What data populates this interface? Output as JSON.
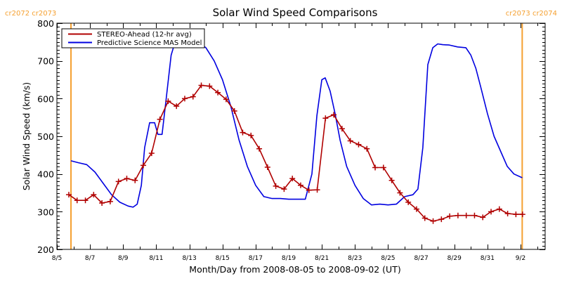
{
  "chart_data": {
    "type": "line",
    "title": "Solar Wind Speed Comparisons",
    "xlabel": "Month/Day from 2008-08-05 to 2008-09-02 (UT)",
    "ylabel": "Solar Wind Speed (km/s)",
    "ylim": [
      200,
      800
    ],
    "xlim_days_from_start": [
      0,
      29.5
    ],
    "yticks": [
      200,
      300,
      400,
      500,
      600,
      700,
      800
    ],
    "xtick_labels": [
      "8/5",
      "8/7",
      "8/9",
      "8/11",
      "8/13",
      "8/15",
      "8/17",
      "8/19",
      "8/21",
      "8/23",
      "8/25",
      "8/27",
      "8/29",
      "8/31",
      "9/2"
    ],
    "xtick_days": [
      0,
      2,
      4,
      6,
      8,
      10,
      12,
      14,
      16,
      18,
      20,
      22,
      24,
      26,
      28
    ],
    "legend_position": "top-left",
    "carrington_markers": [
      {
        "day": 0.85,
        "label": "cr2072 cr2073",
        "align": "left"
      },
      {
        "day": 28.1,
        "label": "cr2073 cr2074",
        "align": "right"
      }
    ],
    "colors": {
      "stereo": "#b00000",
      "mas": "#0000e0",
      "carrington": "#f5a030"
    },
    "series": [
      {
        "name": "STEREO-Ahead (12-hr avg)",
        "color": "#b00000",
        "marker": "plus",
        "x": [
          0.72,
          1.22,
          1.72,
          2.22,
          2.72,
          3.22,
          3.72,
          4.22,
          4.72,
          5.22,
          5.72,
          6.22,
          6.72,
          7.22,
          7.72,
          8.22,
          8.72,
          9.22,
          9.72,
          10.22,
          10.72,
          11.22,
          11.72,
          12.22,
          12.72,
          13.22,
          13.72,
          14.22,
          14.72,
          15.22,
          15.72,
          16.22,
          16.72,
          17.22,
          17.72,
          18.22,
          18.72,
          19.22,
          19.72,
          20.22,
          20.72,
          21.22,
          21.72,
          22.22,
          22.72,
          23.22,
          23.72,
          24.22,
          24.72,
          25.22,
          25.72,
          26.22,
          26.72,
          27.22,
          27.72,
          28.12
        ],
        "values": [
          345,
          330,
          330,
          345,
          323,
          327,
          380,
          388,
          383,
          423,
          455,
          545,
          593,
          580,
          600,
          605,
          635,
          633,
          616,
          598,
          567,
          510,
          502,
          467,
          418,
          368,
          360,
          388,
          370,
          357,
          358,
          548,
          557,
          520,
          488,
          478,
          467,
          417,
          417,
          383,
          350,
          325,
          307,
          283,
          275,
          280,
          288,
          290,
          290,
          290,
          285,
          300,
          307,
          295,
          293,
          293
        ]
      },
      {
        "name": "Predictive Science MAS Model",
        "color": "#0000e0",
        "marker": "none",
        "x": [
          0.85,
          1.3,
          1.8,
          2.3,
          2.8,
          3.3,
          3.8,
          4.3,
          4.6,
          4.85,
          5.1,
          5.3,
          5.6,
          5.9,
          6.1,
          6.35,
          6.6,
          6.9,
          7.1,
          7.4,
          7.7,
          8.0,
          8.5,
          9.0,
          9.5,
          10.0,
          10.5,
          11.0,
          11.5,
          12.0,
          12.5,
          13.0,
          13.5,
          14.0,
          14.5,
          15.0,
          15.4,
          15.7,
          16.0,
          16.2,
          16.5,
          16.8,
          17.1,
          17.5,
          18.0,
          18.5,
          19.0,
          19.5,
          20.0,
          20.5,
          21.0,
          21.5,
          21.8,
          22.1,
          22.4,
          22.7,
          23.0,
          23.3,
          23.7,
          24.2,
          24.7,
          25.0,
          25.3,
          25.6,
          26.0,
          26.4,
          26.8,
          27.2,
          27.6,
          28.1
        ],
        "values": [
          435,
          430,
          425,
          405,
          375,
          345,
          325,
          315,
          312,
          320,
          370,
          470,
          536,
          536,
          505,
          505,
          600,
          715,
          745,
          757,
          758,
          757,
          750,
          735,
          700,
          650,
          580,
          490,
          420,
          370,
          340,
          335,
          335,
          333,
          333,
          333,
          400,
          555,
          650,
          655,
          620,
          560,
          490,
          420,
          370,
          335,
          318,
          320,
          318,
          320,
          340,
          345,
          360,
          470,
          690,
          735,
          745,
          743,
          742,
          737,
          735,
          715,
          680,
          630,
          560,
          500,
          460,
          420,
          400,
          390
        ]
      }
    ]
  }
}
